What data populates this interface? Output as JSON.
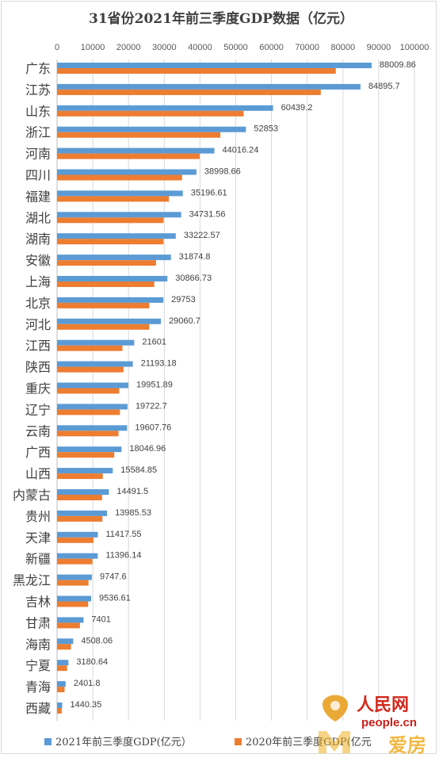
{
  "chart_data": {
    "type": "bar",
    "orientation": "horizontal",
    "title": "31省份2021年前三季度GDP数据（亿元）",
    "xlim": [
      0,
      100000
    ],
    "xticks": [
      0,
      10000,
      20000,
      30000,
      40000,
      50000,
      60000,
      70000,
      80000,
      90000,
      100000
    ],
    "grid": true,
    "legend_position": "bottom",
    "categories": [
      "广东",
      "江苏",
      "山东",
      "浙江",
      "河南",
      "四川",
      "福建",
      "湖北",
      "湖南",
      "安徽",
      "上海",
      "北京",
      "河北",
      "江西",
      "陕西",
      "重庆",
      "辽宁",
      "云南",
      "广西",
      "山西",
      "内蒙古",
      "贵州",
      "天津",
      "新疆",
      "黑龙江",
      "吉林",
      "甘肃",
      "海南",
      "宁夏",
      "青海",
      "西藏"
    ],
    "series": [
      {
        "name": "2021年前三季度GDP(亿元）",
        "color": "#5b9bd5",
        "values": [
          88009.86,
          84895.7,
          60439.2,
          52853,
          44016.24,
          38998.66,
          35196.61,
          34731.56,
          33222.57,
          31874.8,
          30866.73,
          29753,
          29060.7,
          21601,
          21193.18,
          19951.89,
          19722.7,
          19607.76,
          18046.96,
          15584.85,
          14491.5,
          13985.53,
          11417.55,
          11396.14,
          9747.6,
          9536.61,
          7401,
          4508.06,
          3180.64,
          2401.8,
          1440.35
        ],
        "labels": [
          "88009.86",
          "84895.7",
          "60439.2",
          "52853",
          "44016.24",
          "38998.66",
          "35196.61",
          "34731.56",
          "33222.57",
          "31874.8",
          "30866.73",
          "29753",
          "29060.7",
          "21601",
          "21193.18",
          "19951.89",
          "19722.7",
          "19607.76",
          "18046.96",
          "15584.85",
          "14491.5",
          "13985.53",
          "11417.55",
          "11396.14",
          "9747.6",
          "9536.61",
          "7401",
          "4508.06",
          "3180.64",
          "2401.8",
          "1440.35"
        ]
      },
      {
        "name": "2020年前三季度GDP(亿元",
        "color": "#ed7d31",
        "values": [
          78000,
          73800,
          52200,
          45700,
          39900,
          35000,
          31300,
          29800,
          29800,
          27700,
          27200,
          25800,
          25800,
          18300,
          18600,
          17400,
          17600,
          17200,
          16000,
          12800,
          12600,
          12700,
          10200,
          9900,
          8800,
          8700,
          6400,
          3900,
          2800,
          2100,
          1300
        ]
      }
    ]
  },
  "watermark": {
    "site": "people.cn",
    "brand": "人民网",
    "sub": "爱房",
    "logo_color": "#e8a020"
  }
}
